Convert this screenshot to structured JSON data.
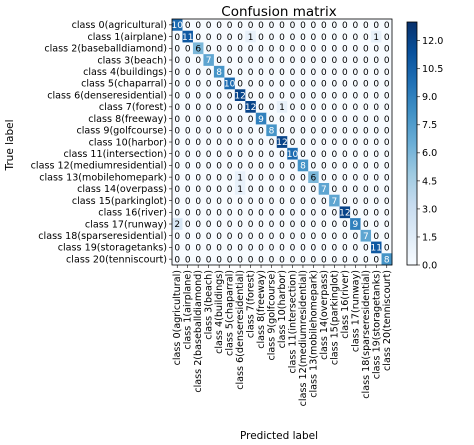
{
  "chart_data": {
    "type": "heatmap",
    "title": "Confusion matrix",
    "xlabel": "Predicted label",
    "ylabel": "True label",
    "labels": [
      "class 0(agricultural)",
      "class 1(airplane)",
      "class 2(baseballdiamond)",
      "class 3(beach)",
      "class 4(buildings)",
      "class 5(chaparral)",
      "class 6(denseresidential)",
      "class 7(forest)",
      "class 8(freeway)",
      "class 9(golfcourse)",
      "class 10(harbor)",
      "class 11(intersection)",
      "class 12(mediumresidential)",
      "class 13(mobilehomepark)",
      "class 14(overpass)",
      "class 15(parkinglot)",
      "class 16(river)",
      "class 17(runway)",
      "class 18(sparseresidential)",
      "class 19(storagetanks)",
      "class 20(tenniscourt)"
    ],
    "matrix": [
      [
        10,
        0,
        0,
        0,
        0,
        0,
        0,
        0,
        0,
        0,
        0,
        0,
        0,
        0,
        0,
        0,
        0,
        0,
        0,
        0,
        0
      ],
      [
        0,
        11,
        0,
        0,
        0,
        0,
        0,
        1,
        0,
        0,
        0,
        0,
        0,
        0,
        0,
        0,
        0,
        0,
        0,
        1,
        0
      ],
      [
        0,
        0,
        6,
        0,
        0,
        0,
        0,
        0,
        0,
        0,
        0,
        0,
        0,
        0,
        0,
        0,
        0,
        0,
        0,
        0,
        0
      ],
      [
        0,
        0,
        0,
        7,
        0,
        0,
        0,
        0,
        0,
        0,
        0,
        0,
        0,
        0,
        0,
        0,
        0,
        0,
        0,
        0,
        0
      ],
      [
        0,
        0,
        0,
        0,
        8,
        0,
        0,
        0,
        0,
        0,
        0,
        0,
        0,
        0,
        0,
        0,
        0,
        0,
        0,
        0,
        0
      ],
      [
        0,
        0,
        0,
        0,
        0,
        10,
        0,
        0,
        0,
        0,
        0,
        0,
        0,
        0,
        0,
        0,
        0,
        0,
        0,
        0,
        0
      ],
      [
        0,
        0,
        0,
        0,
        0,
        0,
        12,
        0,
        0,
        0,
        0,
        0,
        0,
        0,
        0,
        0,
        0,
        0,
        0,
        0,
        0
      ],
      [
        0,
        0,
        0,
        0,
        0,
        0,
        0,
        12,
        0,
        0,
        1,
        0,
        0,
        0,
        0,
        0,
        0,
        0,
        0,
        0,
        0
      ],
      [
        0,
        0,
        0,
        0,
        0,
        0,
        0,
        0,
        9,
        0,
        0,
        0,
        0,
        0,
        0,
        0,
        0,
        0,
        0,
        0,
        0
      ],
      [
        0,
        0,
        0,
        0,
        0,
        0,
        0,
        0,
        0,
        8,
        0,
        0,
        0,
        0,
        0,
        0,
        0,
        0,
        0,
        0,
        0
      ],
      [
        0,
        0,
        0,
        0,
        0,
        0,
        0,
        0,
        0,
        0,
        12,
        0,
        0,
        0,
        0,
        0,
        0,
        0,
        0,
        0,
        0
      ],
      [
        0,
        0,
        0,
        0,
        0,
        0,
        0,
        0,
        0,
        0,
        0,
        10,
        0,
        0,
        0,
        0,
        0,
        0,
        0,
        0,
        0
      ],
      [
        0,
        0,
        0,
        0,
        0,
        0,
        0,
        0,
        0,
        0,
        0,
        0,
        8,
        0,
        0,
        0,
        0,
        0,
        0,
        0,
        0
      ],
      [
        0,
        0,
        0,
        0,
        0,
        0,
        1,
        0,
        0,
        0,
        0,
        0,
        0,
        6,
        0,
        0,
        0,
        0,
        0,
        0,
        0
      ],
      [
        0,
        0,
        0,
        0,
        0,
        0,
        1,
        0,
        0,
        0,
        0,
        0,
        0,
        0,
        7,
        0,
        0,
        0,
        0,
        0,
        0
      ],
      [
        0,
        0,
        0,
        0,
        0,
        0,
        0,
        0,
        0,
        0,
        0,
        0,
        0,
        0,
        0,
        7,
        0,
        0,
        0,
        0,
        0
      ],
      [
        0,
        0,
        0,
        0,
        0,
        0,
        0,
        0,
        0,
        0,
        0,
        0,
        0,
        0,
        0,
        0,
        12,
        0,
        0,
        0,
        0
      ],
      [
        2,
        0,
        0,
        0,
        0,
        0,
        0,
        0,
        0,
        0,
        0,
        0,
        0,
        0,
        0,
        0,
        0,
        9,
        0,
        0,
        0
      ],
      [
        0,
        0,
        0,
        0,
        0,
        0,
        0,
        0,
        0,
        0,
        0,
        0,
        0,
        0,
        0,
        0,
        0,
        0,
        7,
        0,
        0
      ],
      [
        0,
        0,
        0,
        0,
        0,
        0,
        0,
        0,
        0,
        0,
        0,
        0,
        0,
        0,
        0,
        0,
        0,
        0,
        0,
        11,
        0
      ],
      [
        0,
        0,
        0,
        0,
        0,
        0,
        0,
        0,
        0,
        0,
        0,
        0,
        0,
        0,
        0,
        0,
        0,
        0,
        0,
        0,
        8
      ]
    ],
    "colormap": "Blues",
    "color_range": [
      0,
      13
    ],
    "colorbar_ticks": [
      "0.0",
      "1.5",
      "3.0",
      "4.5",
      "6.0",
      "7.5",
      "9.0",
      "10.5",
      "12.0"
    ],
    "colors": {
      "low": "#f7fbff",
      "high": "#08306b",
      "text_dark": "#000000",
      "text_light": "#ffffff"
    }
  }
}
